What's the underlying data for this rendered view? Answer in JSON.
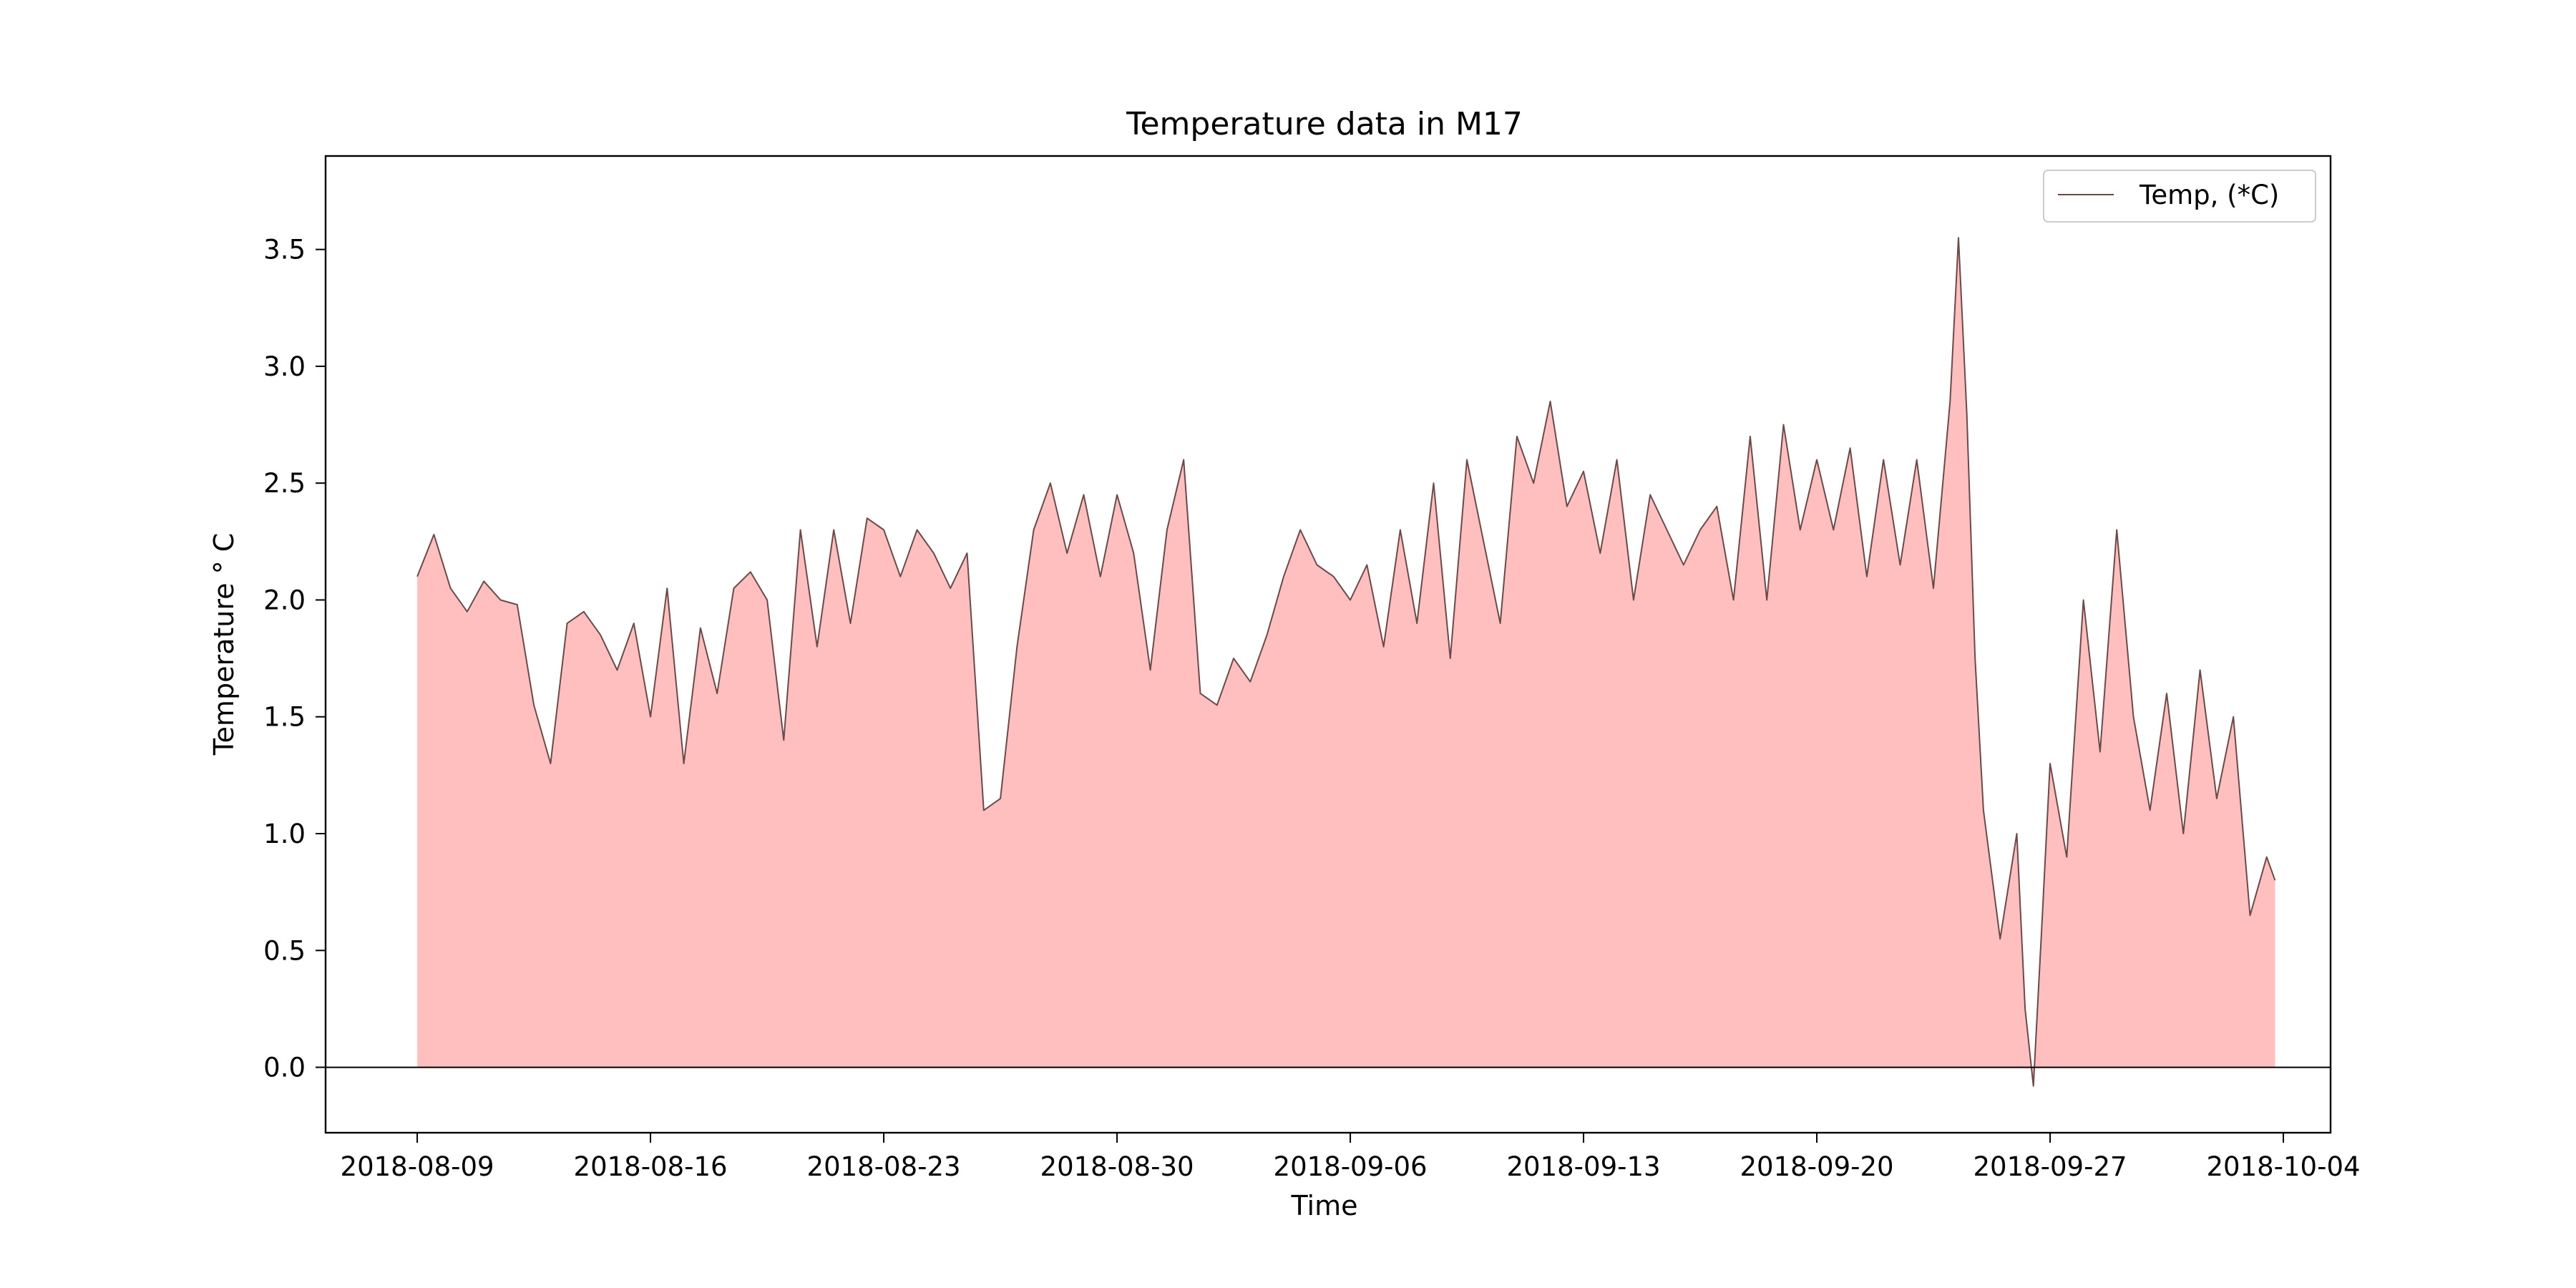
{
  "chart_data": {
    "type": "area",
    "title": "Temperature data in M17",
    "xlabel": "Time",
    "ylabel": "Temperature ° C",
    "x_ticks": [
      "2018-08-09",
      "2018-08-16",
      "2018-08-23",
      "2018-08-30",
      "2018-09-06",
      "2018-09-13",
      "2018-09-20",
      "2018-09-27",
      "2018-10-04"
    ],
    "y_ticks": [
      0.0,
      0.5,
      1.0,
      1.5,
      2.0,
      2.5,
      3.0,
      3.5
    ],
    "y_tick_labels": [
      "0.0",
      "0.5",
      "1.0",
      "1.5",
      "2.0",
      "2.5",
      "3.0",
      "3.5"
    ],
    "xlim": [
      "2018-08-06T06:00",
      "2018-10-05T10:00"
    ],
    "ylim": [
      -0.28,
      3.9
    ],
    "grid": false,
    "legend_position": "top-right",
    "series": [
      {
        "name": "Temp, (*C)",
        "line_color": "#6b4a4a",
        "fill_color": "#ffbfbf",
        "x": [
          "2018-08-09T00:00",
          "2018-08-09T12:00",
          "2018-08-10T00:00",
          "2018-08-10T12:00",
          "2018-08-11T00:00",
          "2018-08-11T12:00",
          "2018-08-12T00:00",
          "2018-08-12T12:00",
          "2018-08-13T00:00",
          "2018-08-13T12:00",
          "2018-08-14T00:00",
          "2018-08-14T12:00",
          "2018-08-15T00:00",
          "2018-08-15T12:00",
          "2018-08-16T00:00",
          "2018-08-16T12:00",
          "2018-08-17T00:00",
          "2018-08-17T12:00",
          "2018-08-18T00:00",
          "2018-08-18T12:00",
          "2018-08-19T00:00",
          "2018-08-19T12:00",
          "2018-08-20T00:00",
          "2018-08-20T12:00",
          "2018-08-21T00:00",
          "2018-08-21T12:00",
          "2018-08-22T00:00",
          "2018-08-22T12:00",
          "2018-08-23T00:00",
          "2018-08-23T12:00",
          "2018-08-24T00:00",
          "2018-08-24T12:00",
          "2018-08-25T00:00",
          "2018-08-25T12:00",
          "2018-08-26T00:00",
          "2018-08-26T12:00",
          "2018-08-27T00:00",
          "2018-08-27T12:00",
          "2018-08-28T00:00",
          "2018-08-28T12:00",
          "2018-08-29T00:00",
          "2018-08-29T12:00",
          "2018-08-30T00:00",
          "2018-08-30T12:00",
          "2018-08-31T00:00",
          "2018-08-31T12:00",
          "2018-09-01T00:00",
          "2018-09-01T12:00",
          "2018-09-02T00:00",
          "2018-09-02T12:00",
          "2018-09-03T00:00",
          "2018-09-03T12:00",
          "2018-09-04T00:00",
          "2018-09-04T12:00",
          "2018-09-05T00:00",
          "2018-09-05T12:00",
          "2018-09-06T00:00",
          "2018-09-06T12:00",
          "2018-09-07T00:00",
          "2018-09-07T12:00",
          "2018-09-08T00:00",
          "2018-09-08T12:00",
          "2018-09-09T00:00",
          "2018-09-09T12:00",
          "2018-09-10T00:00",
          "2018-09-10T12:00",
          "2018-09-11T00:00",
          "2018-09-11T12:00",
          "2018-09-12T00:00",
          "2018-09-12T12:00",
          "2018-09-13T00:00",
          "2018-09-13T12:00",
          "2018-09-14T00:00",
          "2018-09-14T12:00",
          "2018-09-15T00:00",
          "2018-09-15T12:00",
          "2018-09-16T00:00",
          "2018-09-16T12:00",
          "2018-09-17T00:00",
          "2018-09-17T12:00",
          "2018-09-18T00:00",
          "2018-09-18T12:00",
          "2018-09-19T00:00",
          "2018-09-19T12:00",
          "2018-09-20T00:00",
          "2018-09-20T12:00",
          "2018-09-21T00:00",
          "2018-09-21T12:00",
          "2018-09-22T00:00",
          "2018-09-22T12:00",
          "2018-09-23T00:00",
          "2018-09-23T12:00",
          "2018-09-24T00:00",
          "2018-09-24T06:00",
          "2018-09-24T12:00",
          "2018-09-24T18:00",
          "2018-09-25T00:00",
          "2018-09-25T12:00",
          "2018-09-26T00:00",
          "2018-09-26T06:00",
          "2018-09-26T12:00",
          "2018-09-26T18:00",
          "2018-09-27T00:00",
          "2018-09-27T12:00",
          "2018-09-28T00:00",
          "2018-09-28T12:00",
          "2018-09-29T00:00",
          "2018-09-29T12:00",
          "2018-09-30T00:00",
          "2018-09-30T12:00",
          "2018-10-01T00:00",
          "2018-10-01T12:00",
          "2018-10-02T00:00",
          "2018-10-02T12:00",
          "2018-10-03T00:00",
          "2018-10-03T12:00",
          "2018-10-03T18:00"
        ],
        "values": [
          2.1,
          2.28,
          2.05,
          1.95,
          2.08,
          2.0,
          1.98,
          1.55,
          1.3,
          1.9,
          1.95,
          1.85,
          1.7,
          1.9,
          1.5,
          2.05,
          1.3,
          1.88,
          1.6,
          2.05,
          2.12,
          2.0,
          1.4,
          2.3,
          1.8,
          2.3,
          1.9,
          2.35,
          2.3,
          2.1,
          2.3,
          2.2,
          2.05,
          2.2,
          1.1,
          1.15,
          1.8,
          2.3,
          2.5,
          2.2,
          2.45,
          2.1,
          2.45,
          2.2,
          1.7,
          2.3,
          2.6,
          1.6,
          1.55,
          1.75,
          1.65,
          1.85,
          2.1,
          2.3,
          2.15,
          2.1,
          2.0,
          2.15,
          1.8,
          2.3,
          1.9,
          2.5,
          1.75,
          2.6,
          2.25,
          1.9,
          2.7,
          2.5,
          2.85,
          2.4,
          2.55,
          2.2,
          2.6,
          2.0,
          2.45,
          2.3,
          2.15,
          2.3,
          2.4,
          2.0,
          2.7,
          2.0,
          2.75,
          2.3,
          2.6,
          2.3,
          2.65,
          2.1,
          2.6,
          2.15,
          2.6,
          2.05,
          2.85,
          3.55,
          2.8,
          1.75,
          1.1,
          0.55,
          1.0,
          0.25,
          -0.08,
          0.6,
          1.3,
          0.9,
          2.0,
          1.35,
          2.3,
          1.5,
          1.1,
          1.6,
          1.0,
          1.7,
          1.15,
          1.5,
          0.65,
          0.9,
          0.8
        ]
      }
    ]
  }
}
